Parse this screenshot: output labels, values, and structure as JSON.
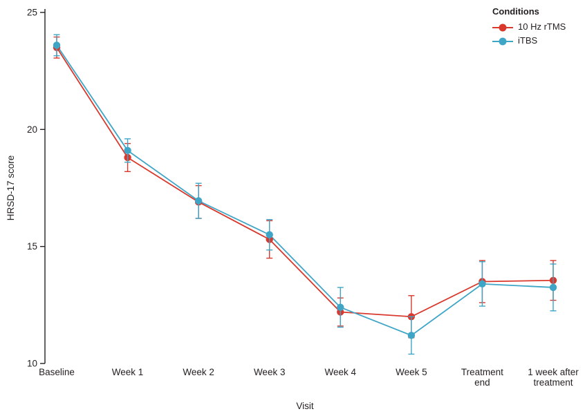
{
  "chart_data": {
    "type": "line",
    "title": "",
    "xlabel": "Visit",
    "ylabel": "HRSD-17 score",
    "legend_title": "Conditions",
    "legend_position": "top-right",
    "grid": false,
    "ink_color": "#231f20",
    "ylim": [
      10,
      25
    ],
    "yticks": [
      10,
      15,
      20,
      25
    ],
    "categories": [
      "Baseline",
      "Week 1",
      "Week 2",
      "Week 3",
      "Week 4",
      "Week 5",
      "Treatment\nend",
      "1 week after\ntreatment"
    ],
    "series": [
      {
        "id": "rtms",
        "name": "10 Hz rTMS",
        "color": "#d9382c",
        "values": [
          23.5,
          18.8,
          16.9,
          15.3,
          12.2,
          12.0,
          13.5,
          13.55
        ],
        "errors": [
          0.45,
          0.6,
          0.7,
          0.8,
          0.6,
          0.9,
          0.9,
          0.85
        ]
      },
      {
        "id": "itbs",
        "name": "iTBS",
        "color": "#3fa5c6",
        "values": [
          23.6,
          19.1,
          16.95,
          15.5,
          12.4,
          11.2,
          13.4,
          13.25
        ],
        "errors": [
          0.45,
          0.5,
          0.75,
          0.65,
          0.85,
          0.8,
          0.95,
          1.0
        ]
      }
    ]
  }
}
